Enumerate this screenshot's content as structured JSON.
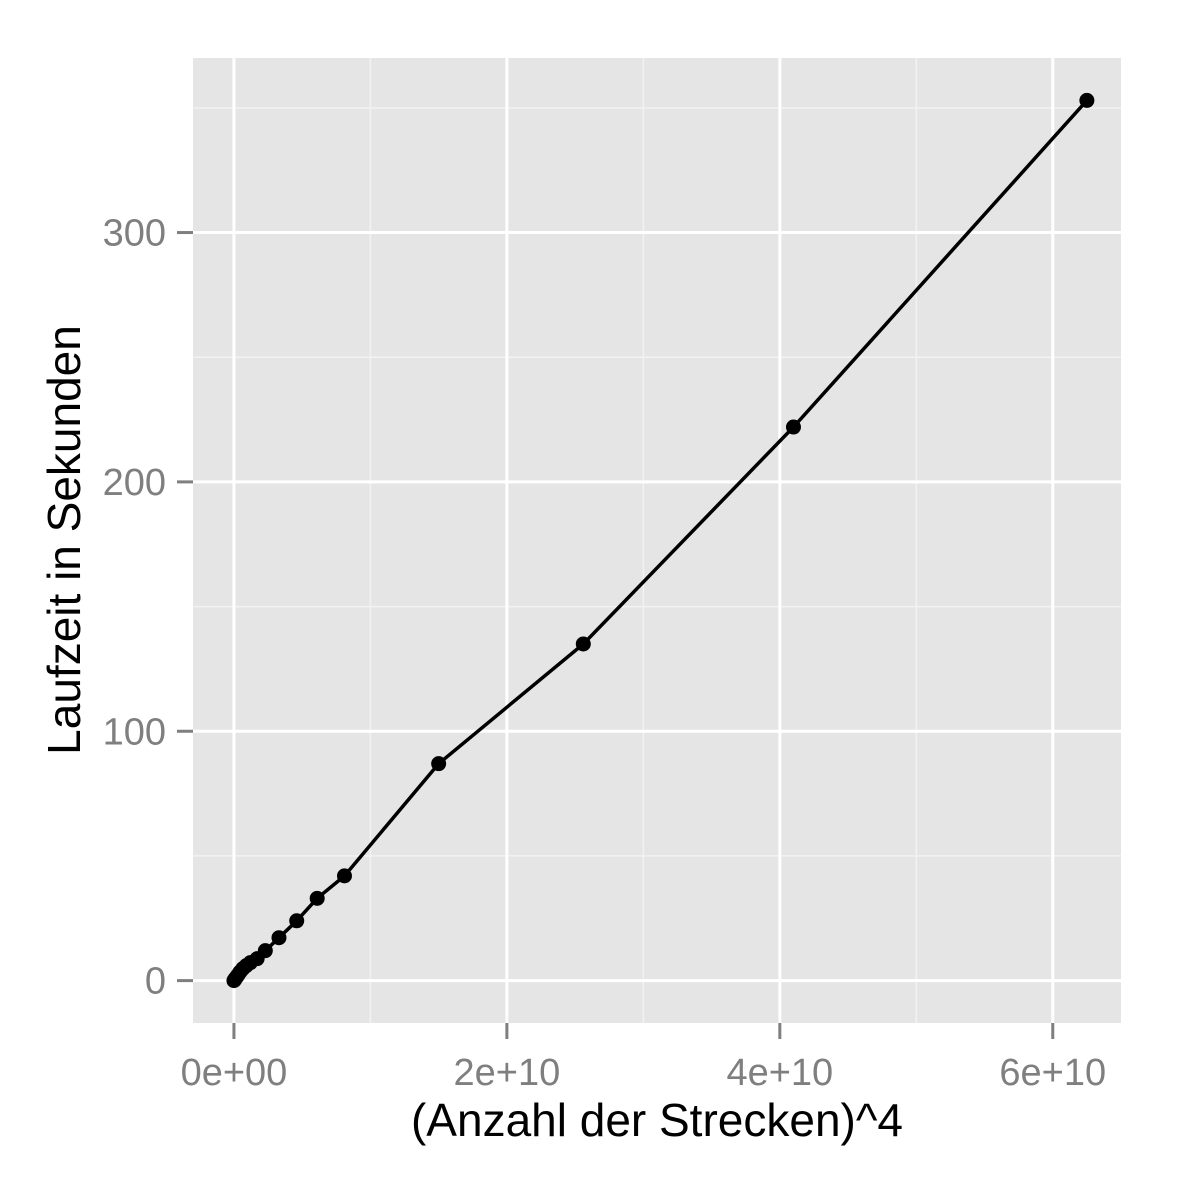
{
  "chart_data": {
    "type": "line",
    "title": "",
    "xlabel": "(Anzahl der Strecken)^4",
    "ylabel": "Laufzeit in Sekunden",
    "xlim": [
      -3000000000.0,
      65000000000.0
    ],
    "ylim": [
      -17,
      370
    ],
    "x_ticks": [
      0,
      20000000000.0,
      40000000000.0,
      60000000000.0
    ],
    "x_tick_labels": [
      "0e+00",
      "2e+10",
      "4e+10",
      "6e+10"
    ],
    "x_minor_ticks": [
      10000000000.0,
      30000000000.0,
      50000000000.0
    ],
    "y_ticks": [
      0,
      100,
      200,
      300
    ],
    "y_tick_labels": [
      "0",
      "100",
      "200",
      "300"
    ],
    "y_minor_ticks": [
      50,
      150,
      250,
      350
    ],
    "grid": true,
    "points_shown": true,
    "series": [
      {
        "x": [
          0,
          50000000.0,
          100000000.0,
          200000000.0,
          300000000.0,
          450000000.0,
          650000000.0,
          900000000.0,
          1200000000.0,
          1700000000.0,
          2300000000.0,
          3300000000.0,
          4600000000.0,
          6100000000.0,
          8100000000.0,
          15000000000.0,
          25600000000.0,
          41000000000.0,
          62500000000.0
        ],
        "y": [
          0,
          0.3,
          0.8,
          1.5,
          2.3,
          3.5,
          4.8,
          6.0,
          7.2,
          8.8,
          12.0,
          17.2,
          24.0,
          33.0,
          42.0,
          87.0,
          135.0,
          222.0,
          353.0
        ]
      }
    ],
    "colors": {
      "panel": "#e5e5e5",
      "grid_major": "#ffffff",
      "grid_minor": "#f2f2f2",
      "line": "#000000",
      "points": "#000000",
      "ticks": "#7f7f7f"
    }
  }
}
